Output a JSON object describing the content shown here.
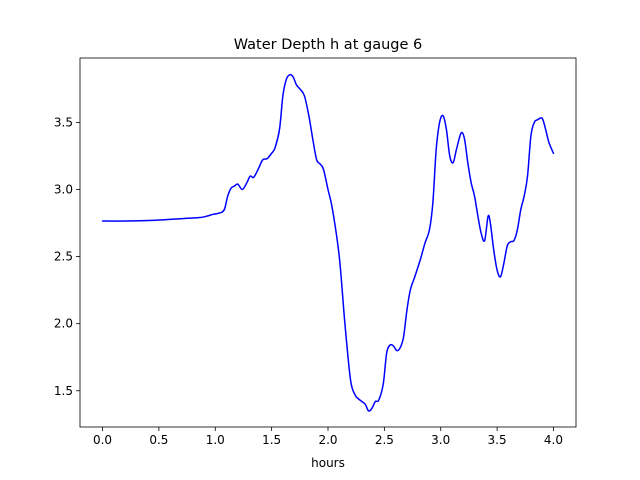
{
  "chart_data": {
    "type": "line",
    "title": "Water Depth h at gauge 6",
    "xlabel": "hours",
    "ylabel": "",
    "xlim": [
      -0.2,
      4.2
    ],
    "ylim": [
      1.23,
      3.98
    ],
    "xticks": [
      0.0,
      0.5,
      1.0,
      1.5,
      2.0,
      2.5,
      3.0,
      3.5,
      4.0
    ],
    "xtick_labels": [
      "0.0",
      "0.5",
      "1.0",
      "1.5",
      "2.0",
      "2.5",
      "3.0",
      "3.5",
      "4.0"
    ],
    "yticks": [
      1.5,
      2.0,
      2.5,
      3.0,
      3.5
    ],
    "ytick_labels": [
      "1.5",
      "2.0",
      "2.5",
      "3.0",
      "3.5"
    ],
    "grid": false,
    "series": [
      {
        "color": "#0000ff",
        "x": [
          0.0,
          0.2,
          0.45,
          0.55,
          0.65,
          0.85,
          0.92,
          0.98,
          1.04,
          1.08,
          1.11,
          1.14,
          1.17,
          1.2,
          1.24,
          1.28,
          1.31,
          1.34,
          1.38,
          1.42,
          1.46,
          1.5,
          1.53,
          1.57,
          1.6,
          1.63,
          1.66,
          1.69,
          1.72,
          1.75,
          1.79,
          1.83,
          1.87,
          1.9,
          1.93,
          1.96,
          2.0,
          2.04,
          2.1,
          2.15,
          2.2,
          2.24,
          2.27,
          2.3,
          2.33,
          2.36,
          2.39,
          2.42,
          2.45,
          2.49,
          2.52,
          2.55,
          2.58,
          2.61,
          2.64,
          2.67,
          2.7,
          2.73,
          2.77,
          2.82,
          2.86,
          2.9,
          2.93,
          2.96,
          2.99,
          3.02,
          3.05,
          3.08,
          3.11,
          3.14,
          3.18,
          3.21,
          3.24,
          3.27,
          3.3,
          3.33,
          3.36,
          3.39,
          3.42,
          3.44,
          3.47,
          3.5,
          3.53,
          3.56,
          3.59,
          3.62,
          3.65,
          3.68,
          3.71,
          3.74,
          3.77,
          3.8,
          3.83,
          3.86,
          3.9,
          3.93,
          3.96,
          4.0
        ],
        "y": [
          2.765,
          2.765,
          2.77,
          2.775,
          2.78,
          2.79,
          2.8,
          2.815,
          2.825,
          2.85,
          2.95,
          3.01,
          3.025,
          3.04,
          3.0,
          3.05,
          3.1,
          3.09,
          3.15,
          3.22,
          3.23,
          3.27,
          3.31,
          3.45,
          3.7,
          3.82,
          3.855,
          3.84,
          3.78,
          3.75,
          3.7,
          3.55,
          3.35,
          3.22,
          3.19,
          3.15,
          3.0,
          2.85,
          2.5,
          2.0,
          1.58,
          1.47,
          1.44,
          1.42,
          1.4,
          1.35,
          1.37,
          1.42,
          1.43,
          1.55,
          1.78,
          1.84,
          1.835,
          1.8,
          1.82,
          1.9,
          2.1,
          2.25,
          2.35,
          2.48,
          2.6,
          2.7,
          2.9,
          3.3,
          3.5,
          3.55,
          3.45,
          3.25,
          3.2,
          3.3,
          3.42,
          3.38,
          3.2,
          3.05,
          2.95,
          2.8,
          2.67,
          2.62,
          2.8,
          2.75,
          2.55,
          2.4,
          2.35,
          2.45,
          2.58,
          2.61,
          2.62,
          2.7,
          2.85,
          2.95,
          3.1,
          3.4,
          3.5,
          3.52,
          3.53,
          3.45,
          3.35,
          3.27
        ]
      }
    ]
  }
}
